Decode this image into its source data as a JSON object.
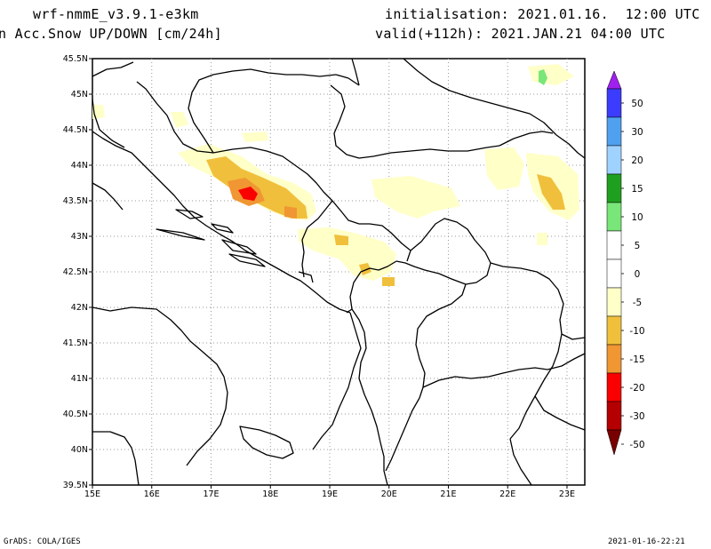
{
  "header": {
    "model": "wrf-nmmE_v3.9.1-e3km",
    "field": "n Acc.Snow UP/DOWN [cm/24h]",
    "init": "initialisation: 2021.01.16.  12:00 UTC",
    "valid": "valid(+112h): 2021.JAN.21 04:00 UTC"
  },
  "map": {
    "lat_labels": [
      "45.5N",
      "45N",
      "44.5N",
      "44N",
      "43.5N",
      "43N",
      "42.5N",
      "42N",
      "41.5N",
      "41N",
      "40.5N",
      "40N",
      "39.5N"
    ],
    "lon_labels": [
      "15E",
      "16E",
      "17E",
      "18E",
      "19E",
      "20E",
      "21E",
      "22E",
      "23E"
    ],
    "lat_range": [
      39.5,
      45.5
    ],
    "lon_range": [
      15.0,
      23.3
    ],
    "grid": "dotted"
  },
  "colorbar": {
    "labels": [
      "50",
      "30",
      "20",
      "15",
      "10",
      "5",
      "0",
      "-5",
      "-10",
      "-15",
      "-20",
      "-30",
      "-50"
    ],
    "colors": {
      "violet": "#a020f0",
      "blue": "#3c3cff",
      "mid_blue": "#50a0f0",
      "light_blue": "#a0d2ff",
      "dark_green": "#1ea01e",
      "green": "#78e678",
      "white": "#ffffff",
      "pale_yellow": "#ffffc8",
      "gold": "#f0c03c",
      "orange": "#f09632",
      "red": "#fa0000",
      "dark_red": "#b40000",
      "maroon": "#780000"
    }
  },
  "footer": {
    "left": "GrADS: COLA/IGES",
    "right": "2021-01-16-22:21"
  }
}
